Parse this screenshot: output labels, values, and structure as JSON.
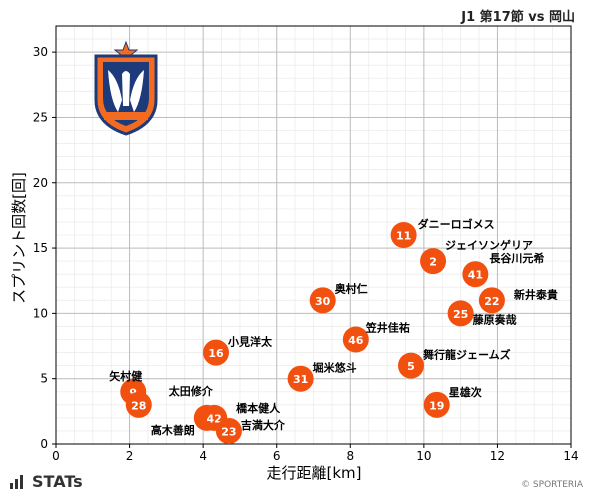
{
  "header": {
    "title": "J1 第17節 vs 岡山"
  },
  "footer": {
    "brand": "STATs",
    "credit": "© SPORTERIA"
  },
  "logo": {
    "name": "Albirex Niigata crest",
    "colors": {
      "orange": "#f26b21",
      "navy": "#1d3a7a"
    }
  },
  "colors": {
    "marker": "#f2500f",
    "marker_text": "#ffffff",
    "grid": "#d9d9d9",
    "axis": "#000000"
  },
  "chart_data": {
    "type": "scatter",
    "title": "J1 第17節 vs 岡山",
    "xlabel": "走行距離[km]",
    "ylabel": "スプリント回数[回]",
    "xlim": [
      0,
      14
    ],
    "ylim": [
      0,
      32
    ],
    "xticks": [
      0,
      2,
      4,
      6,
      8,
      10,
      12,
      14
    ],
    "yticks": [
      0,
      5,
      10,
      15,
      20,
      25,
      30
    ],
    "grid": true,
    "points": [
      {
        "number": "11",
        "name": "ダニーロゴメス",
        "x": 9.45,
        "y": 16
      },
      {
        "number": "2",
        "name": "ジェイソンゲリア",
        "x": 10.25,
        "y": 14
      },
      {
        "number": "41",
        "name": "長谷川元希",
        "x": 11.4,
        "y": 13
      },
      {
        "number": "22",
        "name": "新井泰貴",
        "x": 11.85,
        "y": 11
      },
      {
        "number": "25",
        "name": "藤原奏哉",
        "x": 11.0,
        "y": 10
      },
      {
        "number": "30",
        "name": "奥村仁",
        "x": 7.25,
        "y": 11
      },
      {
        "number": "46",
        "name": "笠井佳祐",
        "x": 8.15,
        "y": 8
      },
      {
        "number": "5",
        "name": "舞行龍ジェームズ",
        "x": 9.65,
        "y": 6
      },
      {
        "number": "19",
        "name": "星雄次",
        "x": 10.35,
        "y": 3
      },
      {
        "number": "16",
        "name": "小見洋太",
        "x": 4.35,
        "y": 7
      },
      {
        "number": "31",
        "name": "堀米悠斗",
        "x": 6.65,
        "y": 5
      },
      {
        "number": "9",
        "name": "矢村健",
        "x": 2.1,
        "y": 4
      },
      {
        "number": "28",
        "name": "太田修介",
        "x": 2.25,
        "y": 3
      },
      {
        "number": "3",
        "name": "高木善朗",
        "x": 4.1,
        "y": 2
      },
      {
        "number": "42",
        "name": "橋本健人",
        "x": 4.3,
        "y": 2
      },
      {
        "number": "23",
        "name": "吉満大介",
        "x": 4.7,
        "y": 1
      }
    ]
  }
}
